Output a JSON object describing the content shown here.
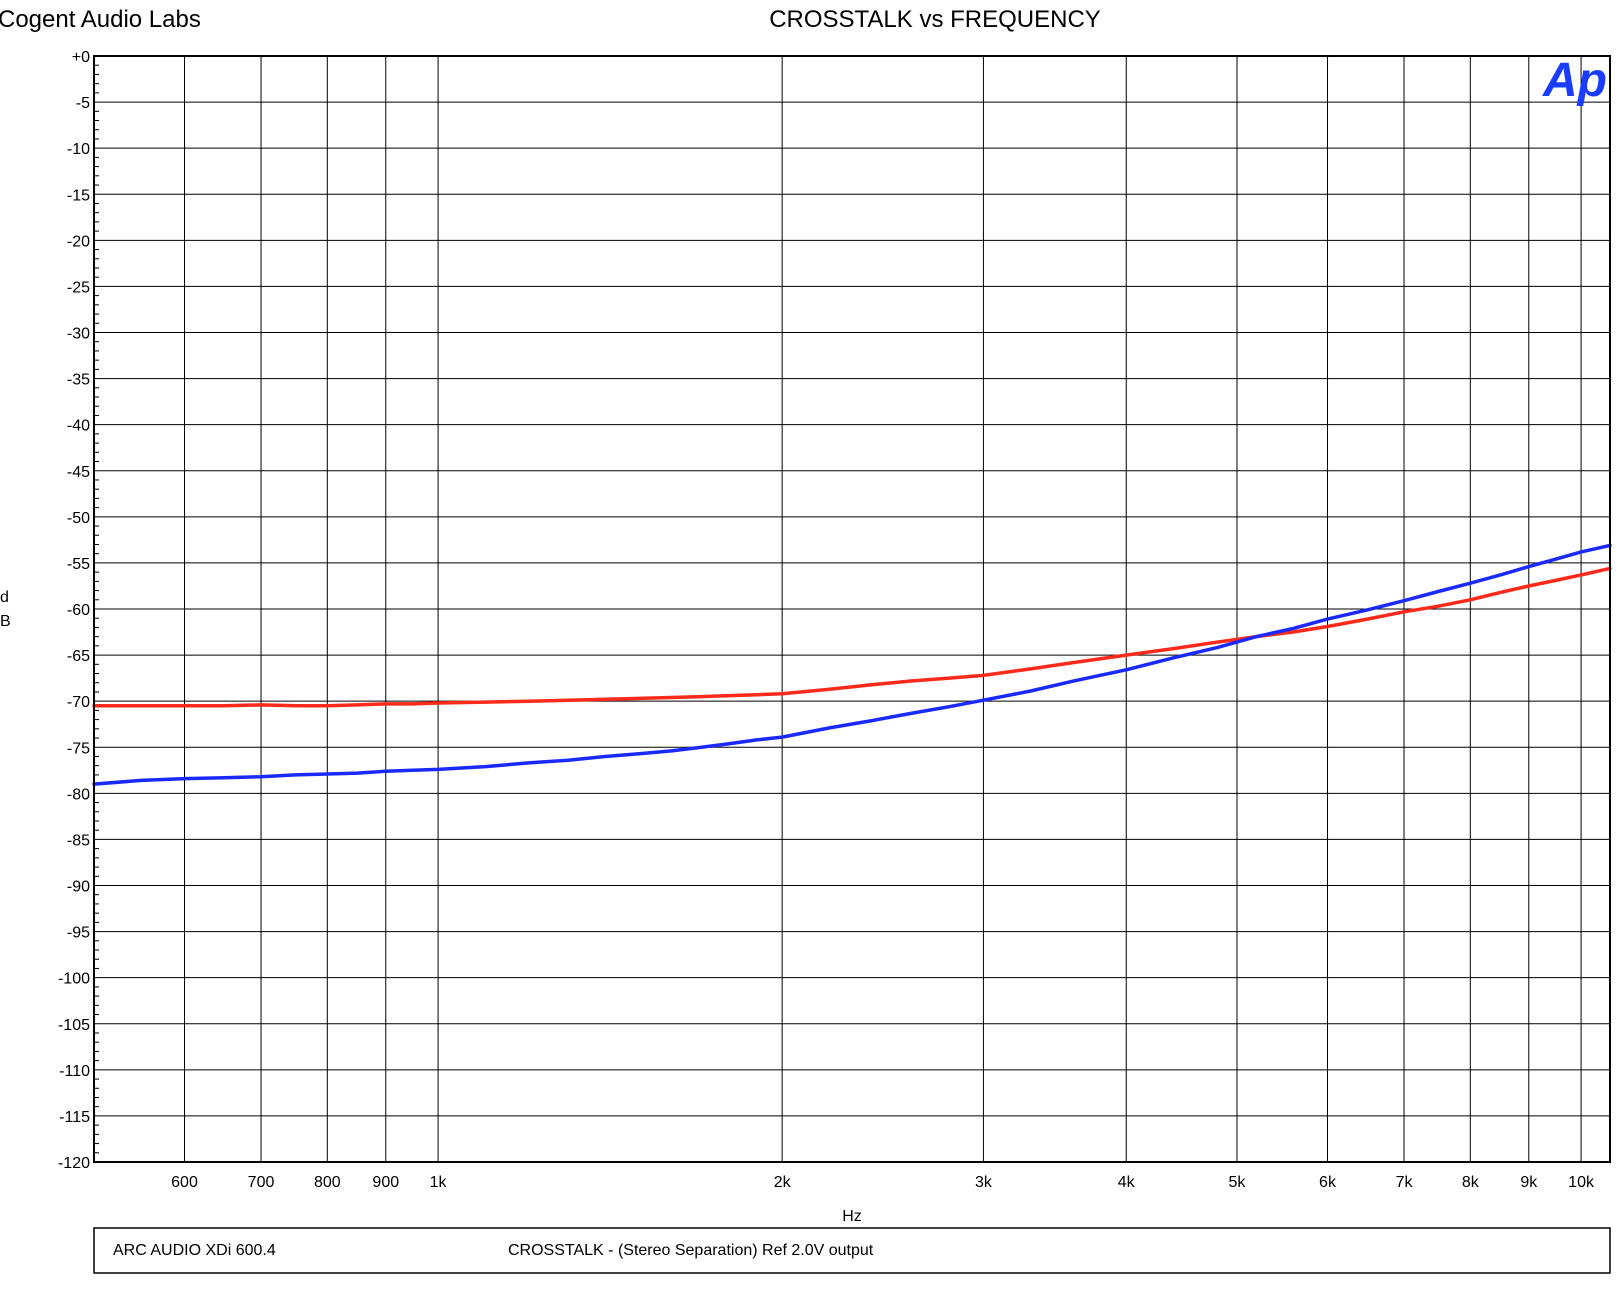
{
  "chart_data": {
    "type": "line",
    "title": "CROSSTALK vs FREQUENCY",
    "company": "Cogent Audio Labs",
    "logo_text": "Ap",
    "xlabel": "Hz",
    "ylabel_lines": [
      "d",
      "B"
    ],
    "x_scale": "log",
    "xlim": [
      500,
      10600
    ],
    "ylim": [
      -120,
      0
    ],
    "grid": true,
    "y_ticks": [
      {
        "value": 0,
        "label": "+0"
      },
      {
        "value": -5,
        "label": "-5"
      },
      {
        "value": -10,
        "label": "-10"
      },
      {
        "value": -15,
        "label": "-15"
      },
      {
        "value": -20,
        "label": "-20"
      },
      {
        "value": -25,
        "label": "-25"
      },
      {
        "value": -30,
        "label": "-30"
      },
      {
        "value": -35,
        "label": "-35"
      },
      {
        "value": -40,
        "label": "-40"
      },
      {
        "value": -45,
        "label": "-45"
      },
      {
        "value": -50,
        "label": "-50"
      },
      {
        "value": -55,
        "label": "-55"
      },
      {
        "value": -60,
        "label": "-60"
      },
      {
        "value": -65,
        "label": "-65"
      },
      {
        "value": -70,
        "label": "-70"
      },
      {
        "value": -75,
        "label": "-75"
      },
      {
        "value": -80,
        "label": "-80"
      },
      {
        "value": -85,
        "label": "-85"
      },
      {
        "value": -90,
        "label": "-90"
      },
      {
        "value": -95,
        "label": "-95"
      },
      {
        "value": -100,
        "label": "-100"
      },
      {
        "value": -105,
        "label": "-105"
      },
      {
        "value": -110,
        "label": "-110"
      },
      {
        "value": -115,
        "label": "-115"
      },
      {
        "value": -120,
        "label": "-120"
      }
    ],
    "x_ticks": [
      {
        "value": 600,
        "label": "600"
      },
      {
        "value": 700,
        "label": "700"
      },
      {
        "value": 800,
        "label": "800"
      },
      {
        "value": 900,
        "label": "900"
      },
      {
        "value": 1000,
        "label": "1k"
      },
      {
        "value": 2000,
        "label": "2k"
      },
      {
        "value": 3000,
        "label": "3k"
      },
      {
        "value": 4000,
        "label": "4k"
      },
      {
        "value": 5000,
        "label": "5k"
      },
      {
        "value": 6000,
        "label": "6k"
      },
      {
        "value": 7000,
        "label": "7k"
      },
      {
        "value": 8000,
        "label": "8k"
      },
      {
        "value": 9000,
        "label": "9k"
      },
      {
        "value": 10000,
        "label": "10k"
      }
    ],
    "series": [
      {
        "color": "#ff2a1a",
        "x": [
          500,
          550,
          600,
          650,
          700,
          750,
          800,
          850,
          900,
          950,
          1000,
          1100,
          1200,
          1300,
          1400,
          1500,
          1600,
          1700,
          1800,
          1900,
          2000,
          2200,
          2400,
          2600,
          2800,
          3000,
          3300,
          3600,
          4000,
          4400,
          4800,
          5200,
          5600,
          6000,
          6500,
          7000,
          7500,
          8000,
          8500,
          9000,
          9500,
          10000,
          10600
        ],
        "y": [
          -70.5,
          -70.5,
          -70.5,
          -70.5,
          -70.4,
          -70.5,
          -70.5,
          -70.4,
          -70.3,
          -70.3,
          -70.2,
          -70.1,
          -70.0,
          -69.9,
          -69.8,
          -69.7,
          -69.6,
          -69.5,
          -69.4,
          -69.3,
          -69.2,
          -68.7,
          -68.2,
          -67.8,
          -67.5,
          -67.2,
          -66.5,
          -65.8,
          -65.0,
          -64.3,
          -63.6,
          -63.0,
          -62.5,
          -61.9,
          -61.1,
          -60.3,
          -59.7,
          -59.0,
          -58.2,
          -57.5,
          -56.9,
          -56.3,
          -55.6
        ]
      },
      {
        "color": "#1a2aff",
        "x": [
          500,
          550,
          600,
          650,
          700,
          750,
          800,
          850,
          900,
          950,
          1000,
          1100,
          1200,
          1300,
          1400,
          1500,
          1600,
          1700,
          1800,
          1900,
          2000,
          2200,
          2400,
          2600,
          2800,
          3000,
          3300,
          3600,
          4000,
          4400,
          4800,
          5200,
          5600,
          6000,
          6500,
          7000,
          7500,
          8000,
          8500,
          9000,
          9500,
          10000,
          10600
        ],
        "y": [
          -79.0,
          -78.6,
          -78.4,
          -78.3,
          -78.2,
          -78.0,
          -77.9,
          -77.8,
          -77.6,
          -77.5,
          -77.4,
          -77.1,
          -76.7,
          -76.4,
          -76.0,
          -75.7,
          -75.4,
          -75.0,
          -74.6,
          -74.2,
          -73.9,
          -72.9,
          -72.1,
          -71.3,
          -70.6,
          -69.9,
          -68.9,
          -67.8,
          -66.6,
          -65.3,
          -64.2,
          -63.0,
          -62.1,
          -61.1,
          -60.1,
          -59.1,
          -58.1,
          -57.2,
          -56.3,
          -55.4,
          -54.6,
          -53.8,
          -53.1
        ]
      }
    ]
  },
  "info_box": {
    "device": "ARC AUDIO  XDi 600.4",
    "description": "CROSSTALK  -  (Stereo Separation)  Ref 2.0V output"
  }
}
